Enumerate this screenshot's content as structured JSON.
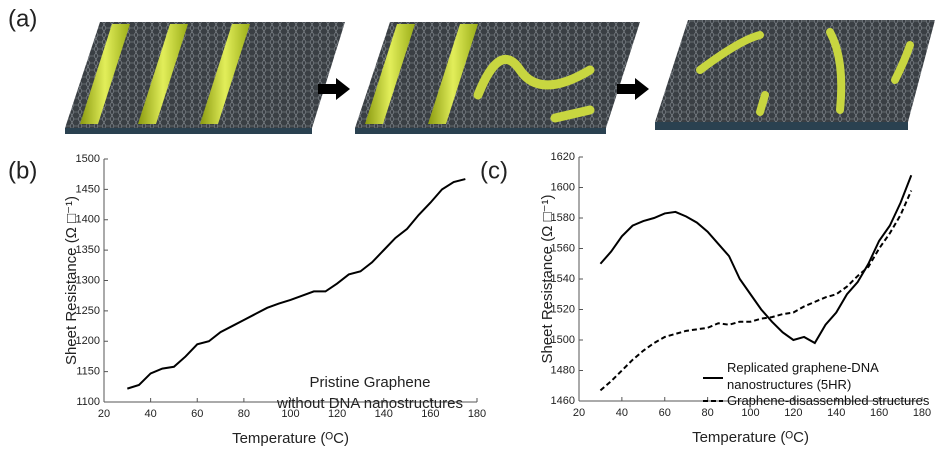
{
  "panel_labels": [
    "(a)",
    "(b)",
    "(c)"
  ],
  "chart_data": [
    {
      "type": "line",
      "x_label": "Temperature (ᴼC)",
      "y_label": "Sheet Resistance (Ω □⁻¹)",
      "annotation": [
        "Pristine Graphene",
        "without DNA nanostructures"
      ],
      "x": [
        30,
        35,
        40,
        45,
        50,
        55,
        60,
        65,
        70,
        75,
        80,
        85,
        90,
        95,
        100,
        105,
        110,
        115,
        120,
        125,
        130,
        135,
        140,
        145,
        150,
        155,
        160,
        165,
        170,
        175
      ],
      "series": [
        {
          "color": "#000000",
          "style": "solid",
          "values": [
            1122,
            1128,
            1147,
            1155,
            1158,
            1175,
            1195,
            1200,
            1215,
            1225,
            1235,
            1245,
            1255,
            1262,
            1268,
            1275,
            1282,
            1282,
            1295,
            1310,
            1315,
            1330,
            1350,
            1370,
            1385,
            1408,
            1428,
            1450,
            1462,
            1467
          ]
        }
      ],
      "xlim": [
        20,
        180
      ],
      "xticks": [
        20,
        40,
        60,
        80,
        100,
        120,
        140,
        160,
        180
      ],
      "ylim": [
        1100,
        1500
      ],
      "yticks": [
        1100,
        1150,
        1200,
        1250,
        1300,
        1350,
        1400,
        1450,
        1500
      ],
      "grid": false
    },
    {
      "type": "line",
      "x_label": "Temperature (ᴼC)",
      "y_label": "Sheet Resistance (Ω □⁻¹)",
      "legend": "lower right",
      "x": [
        30,
        35,
        40,
        45,
        50,
        55,
        60,
        65,
        70,
        75,
        80,
        85,
        90,
        95,
        100,
        105,
        110,
        115,
        120,
        125,
        130,
        135,
        140,
        145,
        150,
        155,
        160,
        165,
        170,
        175
      ],
      "series": [
        {
          "name": "Replicated graphene-DNA nanostructures (5HR)",
          "color": "#000000",
          "style": "solid",
          "values": [
            1550,
            1558,
            1568,
            1575,
            1578,
            1580,
            1583,
            1584,
            1581,
            1577,
            1571,
            1563,
            1555,
            1540,
            1530,
            1520,
            1512,
            1505,
            1500,
            1502,
            1498,
            1510,
            1518,
            1530,
            1538,
            1550,
            1565,
            1575,
            1590,
            1608
          ]
        },
        {
          "name": "Graphene-disassembled structures",
          "color": "#000000",
          "style": "dashed",
          "values": [
            1467,
            1473,
            1480,
            1487,
            1493,
            1498,
            1502,
            1504,
            1506,
            1507,
            1508,
            1511,
            1510,
            1512,
            1512,
            1514,
            1515,
            1517,
            1518,
            1522,
            1525,
            1528,
            1530,
            1535,
            1542,
            1548,
            1560,
            1570,
            1582,
            1598
          ]
        }
      ],
      "xlim": [
        20,
        180
      ],
      "xticks": [
        20,
        40,
        60,
        80,
        100,
        120,
        140,
        160,
        180
      ],
      "ylim": [
        1460,
        1620
      ],
      "yticks": [
        1460,
        1480,
        1500,
        1520,
        1540,
        1560,
        1580,
        1600,
        1620
      ],
      "grid": false
    }
  ]
}
